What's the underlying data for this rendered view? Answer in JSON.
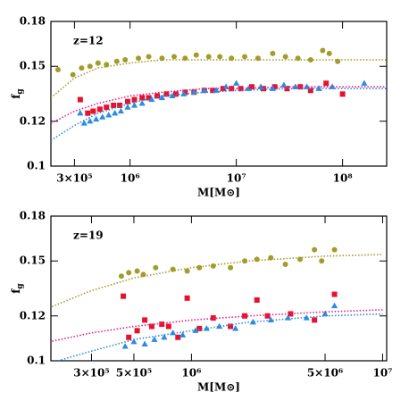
{
  "chart_data": [
    {
      "type": "scatter",
      "annotation": "z=12",
      "xlabel": "M[M⊙]",
      "ylabel": "f",
      "ylabel_sub": "g",
      "log_x": true,
      "log_y": true,
      "xlim": [
        180000,
        260000000
      ],
      "ylim": [
        0.1,
        0.18
      ],
      "xticks": [
        {
          "value": 300000,
          "label": "3×10⁵"
        },
        {
          "value": 1000000,
          "label": "10⁶"
        },
        {
          "value": 10000000,
          "label": "10⁷"
        },
        {
          "value": 100000000,
          "label": "10⁸"
        }
      ],
      "yticks": [
        0.1,
        0.12,
        0.15,
        0.18
      ],
      "series": [
        {
          "color": "#a39b2a",
          "marker": "circle",
          "x": [
            210000,
            290000,
            350000,
            420000,
            500000,
            600000,
            750000,
            900000,
            1200000,
            1500000,
            2000000,
            2600000,
            3300000,
            4200000,
            5500000,
            7000000,
            9000000,
            12000000,
            16000000,
            22000000,
            29000000,
            38000000,
            50000000,
            65000000,
            75000000,
            90000000
          ],
          "values": [
            0.148,
            0.145,
            0.149,
            0.15,
            0.152,
            0.151,
            0.153,
            0.154,
            0.155,
            0.156,
            0.155,
            0.156,
            0.155,
            0.157,
            0.156,
            0.156,
            0.155,
            0.156,
            0.155,
            0.158,
            0.156,
            0.155,
            0.154,
            0.16,
            0.158,
            0.153
          ]
        },
        {
          "color": "#e8112d",
          "marker": "square",
          "x": [
            340000,
            400000,
            450000,
            520000,
            600000,
            700000,
            800000,
            950000,
            1100000,
            1300000,
            1500000,
            1800000,
            2200000,
            2700000,
            3300000,
            4000000,
            5000000,
            6000000,
            7500000,
            9000000,
            11000000,
            14000000,
            18000000,
            23000000,
            30000000,
            40000000,
            50000000,
            70000000,
            100000000
          ],
          "values": [
            0.131,
            0.124,
            0.125,
            0.126,
            0.127,
            0.128,
            0.128,
            0.13,
            0.131,
            0.132,
            0.132,
            0.133,
            0.134,
            0.134,
            0.135,
            0.135,
            0.136,
            0.136,
            0.137,
            0.137,
            0.137,
            0.138,
            0.137,
            0.138,
            0.137,
            0.138,
            0.136,
            0.14,
            0.134
          ]
        },
        {
          "color": "#2b8de0",
          "marker": "triangle",
          "x": [
            340000,
            370000,
            420000,
            480000,
            550000,
            630000,
            720000,
            820000,
            950000,
            1100000,
            1300000,
            1600000,
            2000000,
            2500000,
            3200000,
            4000000,
            5000000,
            6500000,
            8000000,
            10000000,
            13000000,
            17000000,
            22000000,
            28000000,
            36000000,
            46000000,
            60000000,
            80000000,
            160000000
          ],
          "values": [
            0.124,
            0.119,
            0.12,
            0.121,
            0.122,
            0.123,
            0.124,
            0.125,
            0.127,
            0.128,
            0.129,
            0.131,
            0.132,
            0.133,
            0.134,
            0.135,
            0.136,
            0.136,
            0.138,
            0.14,
            0.137,
            0.138,
            0.137,
            0.139,
            0.138,
            0.138,
            0.137,
            0.138,
            0.14
          ]
        },
        {
          "color": "#a39b2a",
          "marker": "dotted",
          "x": [
            180000,
            300000,
            500000,
            1000000,
            2000000,
            5000000,
            10000000,
            30000000,
            100000000,
            260000000
          ],
          "values": [
            0.132,
            0.143,
            0.149,
            0.152,
            0.154,
            0.154,
            0.154,
            0.154,
            0.154,
            0.154
          ]
        },
        {
          "color": "#e0208a",
          "marker": "dotted",
          "x": [
            180000,
            300000,
            500000,
            1000000,
            2000000,
            5000000,
            10000000,
            30000000,
            100000000,
            260000000
          ],
          "values": [
            0.119,
            0.125,
            0.129,
            0.133,
            0.135,
            0.137,
            0.137,
            0.138,
            0.138,
            0.138
          ]
        },
        {
          "color": "#2b8de0",
          "marker": "dotted",
          "x": [
            180000,
            300000,
            500000,
            1000000,
            2000000,
            5000000,
            10000000,
            30000000,
            100000000,
            260000000
          ],
          "values": [
            0.111,
            0.118,
            0.124,
            0.129,
            0.133,
            0.135,
            0.136,
            0.137,
            0.137,
            0.137
          ]
        }
      ]
    },
    {
      "type": "scatter",
      "annotation": "z=19",
      "xlabel": "M[M⊙]",
      "ylabel": "f",
      "ylabel_sub": "g",
      "log_x": true,
      "log_y": true,
      "xlim": [
        184000,
        10500000
      ],
      "ylim": [
        0.1,
        0.18
      ],
      "xticks": [
        {
          "value": 300000,
          "label": "3×10⁵"
        },
        {
          "value": 500000,
          "label": "5×10⁵"
        },
        {
          "value": 1000000,
          "label": "10⁶"
        },
        {
          "value": 5000000,
          "label": "5×10⁶"
        },
        {
          "value": 10000000,
          "label": "10⁷"
        }
      ],
      "yticks": [
        0.1,
        0.12,
        0.15,
        0.18
      ],
      "series": [
        {
          "color": "#a39b2a",
          "marker": "circle",
          "x": [
            430000,
            470000,
            520000,
            560000,
            650000,
            800000,
            950000,
            1100000,
            1300000,
            1600000,
            1900000,
            2200000,
            2600000,
            3100000,
            3700000,
            4400000,
            4800000,
            5600000
          ],
          "values": [
            0.141,
            0.143,
            0.144,
            0.142,
            0.146,
            0.145,
            0.144,
            0.146,
            0.147,
            0.146,
            0.15,
            0.151,
            0.152,
            0.148,
            0.151,
            0.157,
            0.15,
            0.157
          ]
        },
        {
          "color": "#e8112d",
          "marker": "square",
          "x": [
            440000,
            470000,
            520000,
            570000,
            620000,
            700000,
            760000,
            850000,
            950000,
            1100000,
            1300000,
            1600000,
            1900000,
            2200000,
            2500000,
            3300000,
            4400000,
            5600000
          ],
          "values": [
            0.13,
            0.11,
            0.113,
            0.118,
            0.115,
            0.116,
            0.115,
            0.11,
            0.129,
            0.114,
            0.119,
            0.115,
            0.12,
            0.128,
            0.12,
            0.121,
            0.118,
            0.131
          ]
        },
        {
          "color": "#2b8de0",
          "marker": "triangle",
          "x": [
            450000,
            500000,
            570000,
            640000,
            720000,
            800000,
            900000,
            1050000,
            1200000,
            1400000,
            1700000,
            2100000,
            2600000,
            3200000,
            4000000,
            5000000,
            5600000
          ],
          "values": [
            0.106,
            0.108,
            0.107,
            0.109,
            0.11,
            0.112,
            0.111,
            0.113,
            0.114,
            0.115,
            0.114,
            0.117,
            0.118,
            0.119,
            0.119,
            0.121,
            0.125
          ]
        },
        {
          "color": "#a39b2a",
          "marker": "dotted",
          "x": [
            180000,
            300000,
            500000,
            1000000,
            2000000,
            5000000,
            10000000
          ],
          "values": [
            0.124,
            0.133,
            0.14,
            0.146,
            0.15,
            0.153,
            0.154
          ]
        },
        {
          "color": "#e0208a",
          "marker": "dotted",
          "x": [
            180000,
            300000,
            500000,
            1000000,
            2000000,
            5000000,
            10000000
          ],
          "values": [
            0.108,
            0.112,
            0.115,
            0.118,
            0.12,
            0.122,
            0.123
          ]
        },
        {
          "color": "#2b8de0",
          "marker": "dotted",
          "x": [
            180000,
            300000,
            500000,
            1000000,
            2000000,
            5000000,
            10000000
          ],
          "values": [
            0.099,
            0.104,
            0.109,
            0.113,
            0.117,
            0.12,
            0.121
          ]
        }
      ]
    }
  ]
}
